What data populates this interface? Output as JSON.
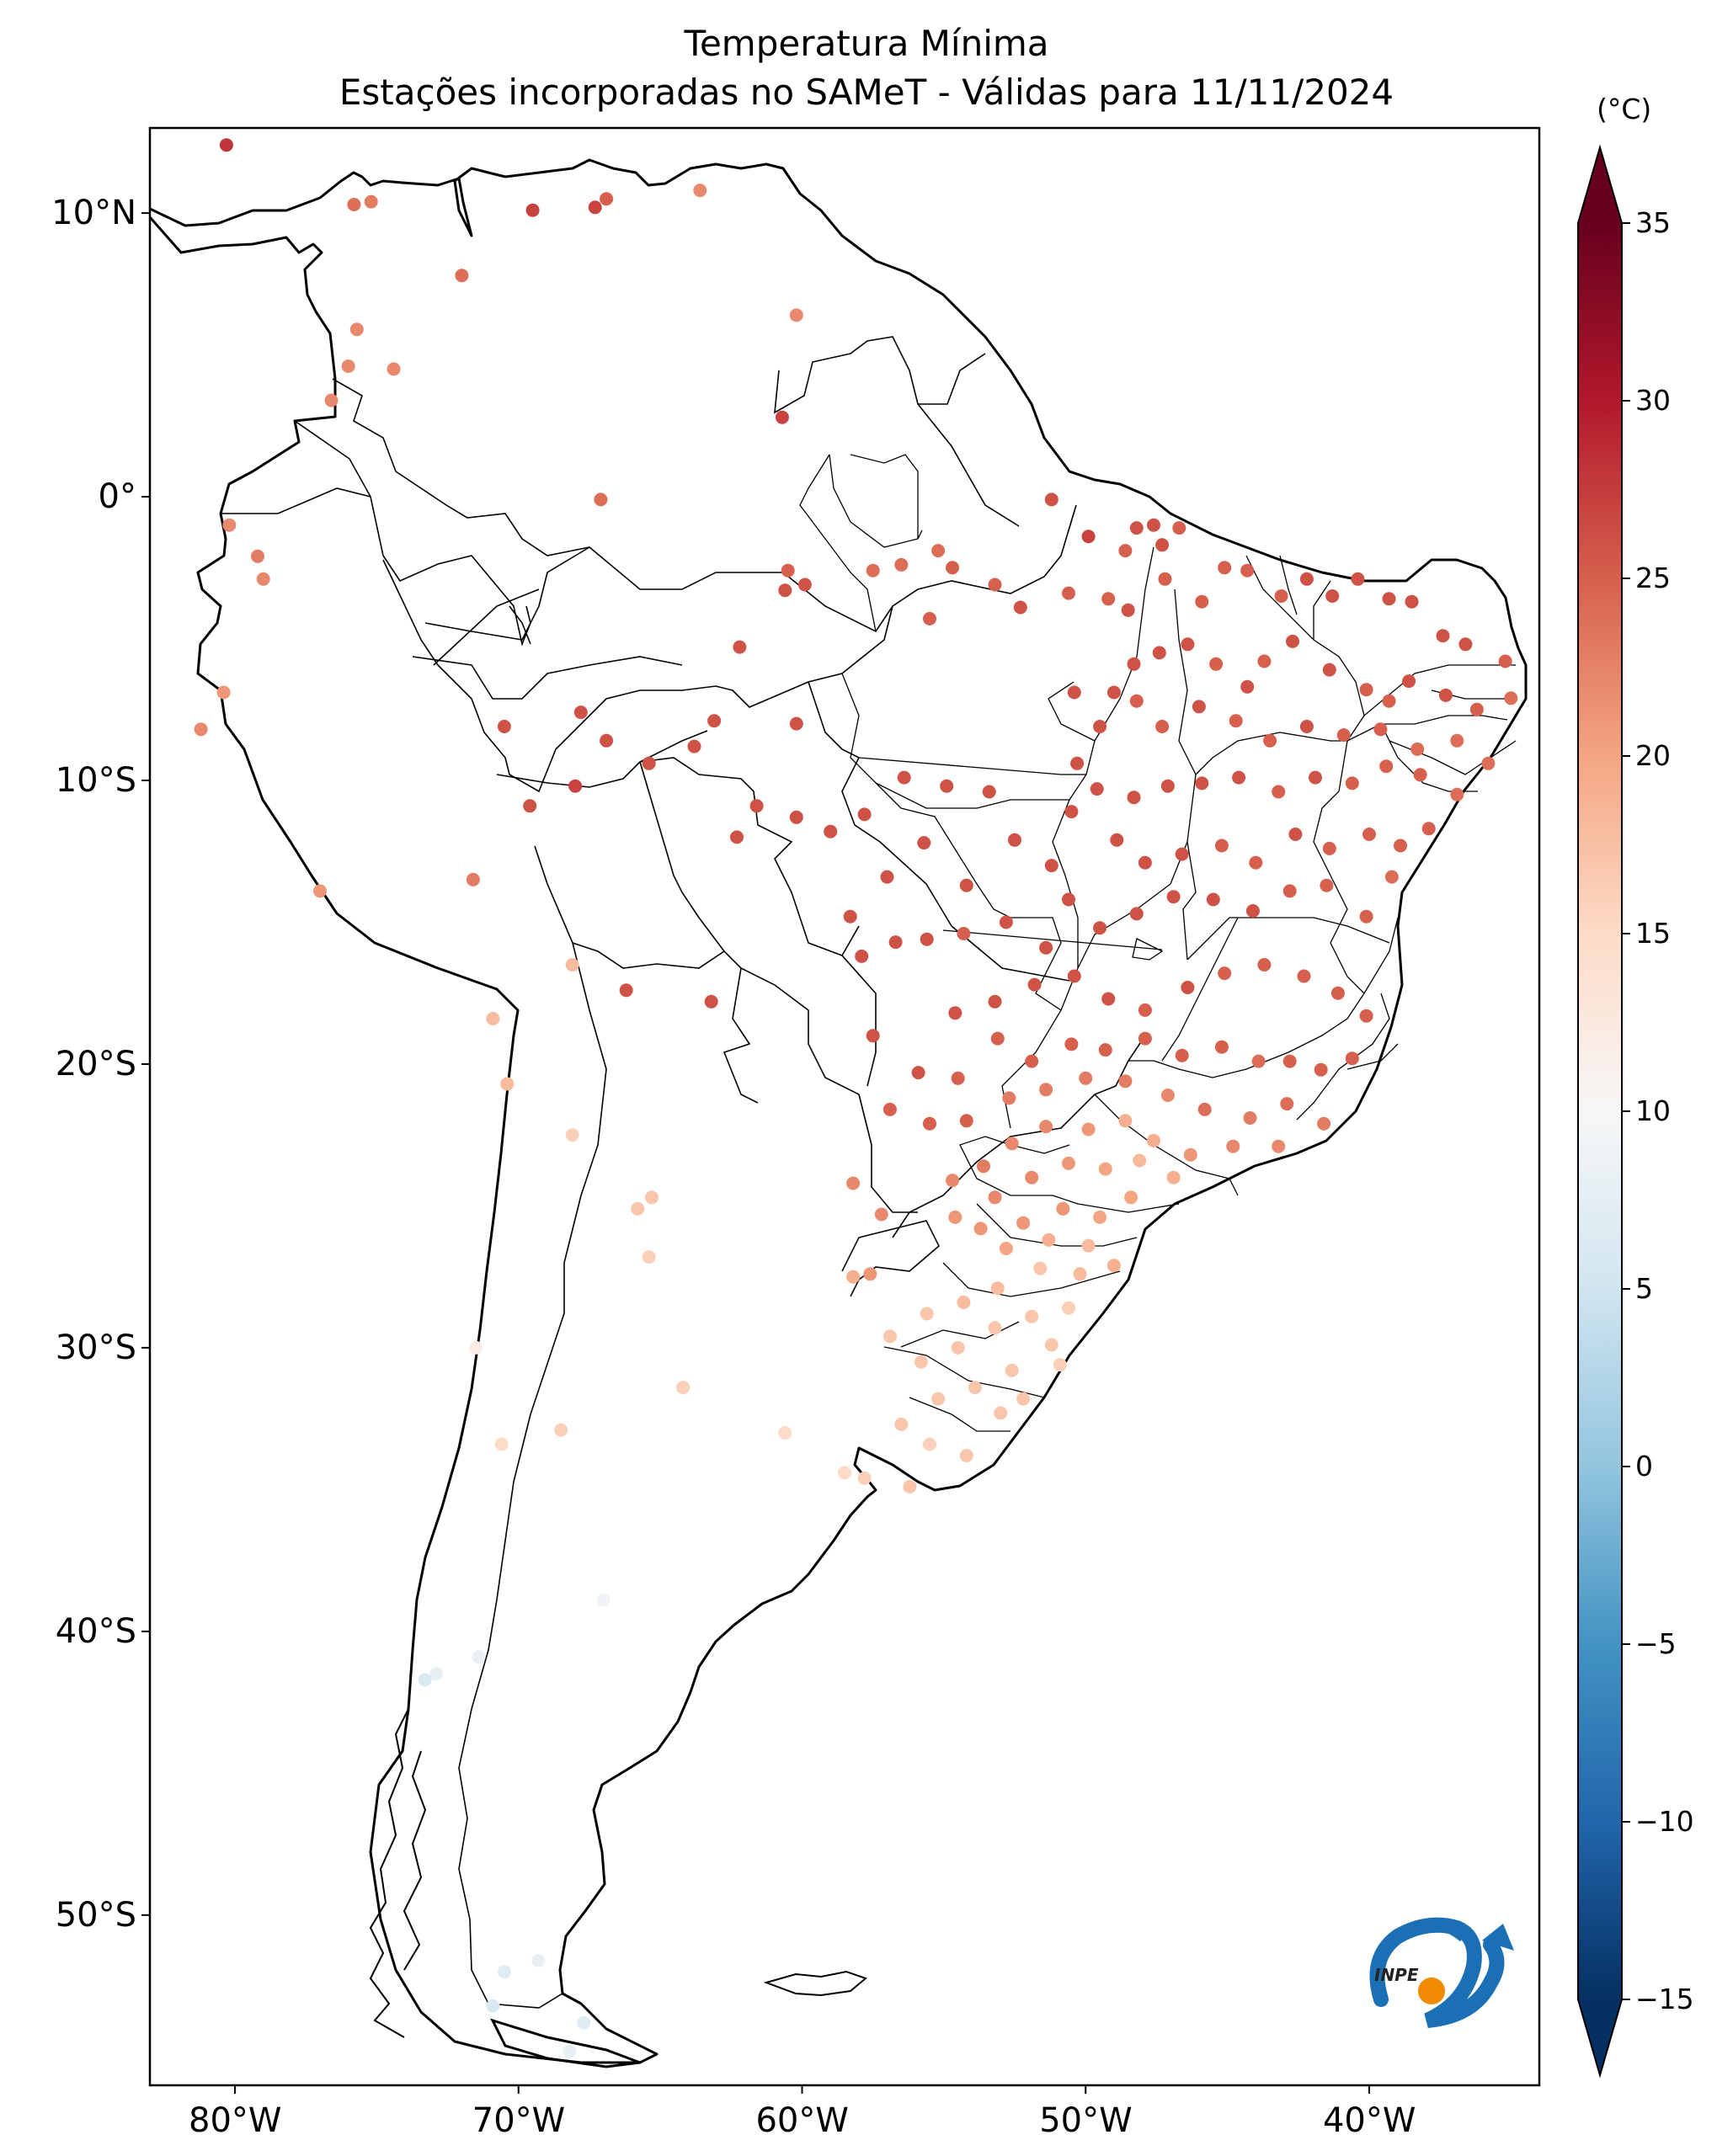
{
  "title": {
    "line1": "Temperatura Mínima",
    "line2": "Estações incorporadas no SAMeT - Válidas para 11/11/2024"
  },
  "map": {
    "lon_range": [
      -83,
      -34
    ],
    "lat_range": [
      -56,
      13
    ],
    "lat_ticks": [
      {
        "value": 10,
        "label": "10°N"
      },
      {
        "value": 0,
        "label": "0°"
      },
      {
        "value": -10,
        "label": "10°S"
      },
      {
        "value": -20,
        "label": "20°S"
      },
      {
        "value": -30,
        "label": "30°S"
      },
      {
        "value": -40,
        "label": "40°S"
      },
      {
        "value": -50,
        "label": "50°S"
      }
    ],
    "lon_ticks": [
      {
        "value": -80,
        "label": "80°W"
      },
      {
        "value": -70,
        "label": "70°W"
      },
      {
        "value": -60,
        "label": "60°W"
      },
      {
        "value": -50,
        "label": "50°W"
      },
      {
        "value": -40,
        "label": "40°W"
      }
    ]
  },
  "colorbar": {
    "unit": "(°C)",
    "min": -15,
    "max": 35,
    "extend": "both",
    "colormap": "RdBu_r",
    "ticks": [
      {
        "value": 35,
        "label": "35"
      },
      {
        "value": 30,
        "label": "30"
      },
      {
        "value": 25,
        "label": "25"
      },
      {
        "value": 20,
        "label": "20"
      },
      {
        "value": 15,
        "label": "15"
      },
      {
        "value": 10,
        "label": "10"
      },
      {
        "value": 5,
        "label": "5"
      },
      {
        "value": 0,
        "label": "0"
      },
      {
        "value": -5,
        "label": "−5"
      },
      {
        "value": -10,
        "label": "−10"
      },
      {
        "value": -15,
        "label": "−15"
      }
    ],
    "stops": [
      "#053061",
      "#2166ac",
      "#4393c3",
      "#92c5de",
      "#d1e5f0",
      "#f7f7f7",
      "#fddbc7",
      "#f4a582",
      "#d6604d",
      "#b2182b",
      "#67001f"
    ]
  },
  "logo": {
    "text": "INPE",
    "blue": "#1a6fb5",
    "orange": "#f08a00"
  },
  "chart_data": {
    "type": "scatter",
    "description_units": "lon (deg E), lat (deg N), minimum temperature (°C)",
    "stations": [
      [
        -80.3,
        12.4,
        28
      ],
      [
        -75.8,
        10.3,
        24
      ],
      [
        -75.2,
        10.4,
        23
      ],
      [
        -69.5,
        10.1,
        27
      ],
      [
        -67.3,
        10.2,
        27
      ],
      [
        -66.9,
        10.5,
        25
      ],
      [
        -63.6,
        10.8,
        22
      ],
      [
        -72.0,
        7.8,
        24
      ],
      [
        -60.2,
        6.4,
        22
      ],
      [
        -75.7,
        5.9,
        22
      ],
      [
        -76.0,
        4.6,
        22
      ],
      [
        -74.4,
        4.5,
        22
      ],
      [
        -76.6,
        3.4,
        22
      ],
      [
        -60.7,
        2.8,
        27
      ],
      [
        -67.1,
        -0.1,
        24
      ],
      [
        -80.2,
        -1.0,
        22
      ],
      [
        -79.2,
        -2.1,
        23
      ],
      [
        -79.0,
        -2.9,
        22
      ],
      [
        -59.9,
        -3.1,
        26
      ],
      [
        -60.6,
        -3.3,
        26
      ],
      [
        -60.5,
        -2.6,
        25
      ],
      [
        -57.5,
        -2.6,
        24
      ],
      [
        -56.5,
        -2.4,
        24
      ],
      [
        -55.2,
        -1.9,
        24
      ],
      [
        -54.7,
        -2.5,
        25
      ],
      [
        -53.2,
        -3.1,
        25
      ],
      [
        -55.5,
        -4.3,
        25
      ],
      [
        -52.3,
        -3.9,
        26
      ],
      [
        -50.6,
        -3.4,
        25
      ],
      [
        -49.2,
        -3.6,
        25
      ],
      [
        -48.5,
        -4.0,
        26
      ],
      [
        -45.9,
        -3.7,
        25
      ],
      [
        -51.2,
        -0.1,
        26
      ],
      [
        -49.9,
        -1.4,
        27
      ],
      [
        -48.2,
        -1.1,
        26
      ],
      [
        -47.6,
        -1.0,
        26
      ],
      [
        -46.7,
        -1.1,
        25
      ],
      [
        -47.3,
        -1.7,
        26
      ],
      [
        -48.6,
        -1.9,
        25
      ],
      [
        -47.2,
        -2.9,
        25
      ],
      [
        -45.1,
        -2.5,
        25
      ],
      [
        -44.3,
        -2.6,
        25
      ],
      [
        -43.1,
        -3.5,
        25
      ],
      [
        -42.2,
        -2.9,
        26
      ],
      [
        -41.3,
        -3.5,
        26
      ],
      [
        -40.4,
        -2.9,
        26
      ],
      [
        -39.3,
        -3.6,
        26
      ],
      [
        -38.5,
        -3.7,
        26
      ],
      [
        -37.4,
        -4.9,
        26
      ],
      [
        -36.6,
        -5.2,
        26
      ],
      [
        -35.2,
        -5.8,
        25
      ],
      [
        -35.0,
        -7.1,
        24
      ],
      [
        -36.2,
        -7.5,
        25
      ],
      [
        -37.3,
        -7.0,
        26
      ],
      [
        -38.6,
        -6.5,
        26
      ],
      [
        -39.3,
        -7.2,
        25
      ],
      [
        -40.1,
        -6.8,
        25
      ],
      [
        -41.4,
        -6.1,
        26
      ],
      [
        -42.7,
        -5.1,
        26
      ],
      [
        -43.7,
        -5.8,
        25
      ],
      [
        -44.3,
        -6.7,
        26
      ],
      [
        -45.4,
        -5.9,
        25
      ],
      [
        -46.4,
        -5.2,
        26
      ],
      [
        -47.4,
        -5.5,
        26
      ],
      [
        -48.3,
        -5.9,
        26
      ],
      [
        -49.0,
        -6.9,
        26
      ],
      [
        -48.2,
        -7.2,
        25
      ],
      [
        -47.3,
        -8.1,
        25
      ],
      [
        -46.0,
        -7.4,
        26
      ],
      [
        -44.7,
        -7.9,
        25
      ],
      [
        -43.5,
        -8.6,
        25
      ],
      [
        -42.2,
        -8.1,
        26
      ],
      [
        -40.9,
        -8.4,
        25
      ],
      [
        -39.6,
        -8.2,
        25
      ],
      [
        -38.3,
        -8.9,
        24
      ],
      [
        -36.9,
        -8.6,
        24
      ],
      [
        -35.8,
        -9.4,
        24
      ],
      [
        -36.9,
        -10.5,
        24
      ],
      [
        -38.2,
        -9.8,
        25
      ],
      [
        -39.4,
        -9.5,
        25
      ],
      [
        -40.6,
        -10.1,
        25
      ],
      [
        -41.9,
        -9.9,
        26
      ],
      [
        -43.2,
        -10.4,
        25
      ],
      [
        -44.6,
        -9.9,
        26
      ],
      [
        -45.9,
        -10.1,
        26
      ],
      [
        -47.1,
        -10.2,
        26
      ],
      [
        -48.3,
        -10.6,
        26
      ],
      [
        -49.6,
        -10.3,
        26
      ],
      [
        -50.3,
        -9.4,
        26
      ],
      [
        -49.5,
        -8.1,
        26
      ],
      [
        -50.4,
        -6.9,
        26
      ],
      [
        -48.9,
        -12.1,
        26
      ],
      [
        -47.9,
        -12.9,
        26
      ],
      [
        -46.6,
        -12.6,
        26
      ],
      [
        -45.2,
        -12.3,
        25
      ],
      [
        -44.0,
        -12.9,
        25
      ],
      [
        -42.6,
        -11.9,
        26
      ],
      [
        -41.4,
        -12.4,
        25
      ],
      [
        -40.0,
        -11.9,
        25
      ],
      [
        -38.9,
        -12.3,
        25
      ],
      [
        -37.9,
        -11.7,
        25
      ],
      [
        -39.2,
        -13.4,
        24
      ],
      [
        -40.1,
        -14.8,
        25
      ],
      [
        -41.5,
        -13.7,
        25
      ],
      [
        -42.8,
        -13.9,
        25
      ],
      [
        -44.1,
        -14.6,
        26
      ],
      [
        -45.5,
        -14.2,
        26
      ],
      [
        -46.9,
        -14.1,
        26
      ],
      [
        -48.2,
        -14.7,
        26
      ],
      [
        -49.5,
        -15.2,
        26
      ],
      [
        -50.6,
        -14.2,
        26
      ],
      [
        -51.4,
        -15.9,
        26
      ],
      [
        -52.8,
        -15.0,
        26
      ],
      [
        -54.3,
        -15.4,
        25
      ],
      [
        -55.6,
        -15.6,
        26
      ],
      [
        -56.7,
        -15.7,
        26
      ],
      [
        -57.9,
        -16.2,
        26
      ],
      [
        -58.3,
        -14.8,
        26
      ],
      [
        -57.0,
        -13.4,
        26
      ],
      [
        -55.7,
        -12.2,
        26
      ],
      [
        -54.2,
        -13.7,
        26
      ],
      [
        -52.5,
        -12.1,
        26
      ],
      [
        -51.2,
        -13.0,
        26
      ],
      [
        -50.5,
        -11.1,
        26
      ],
      [
        -53.4,
        -10.4,
        26
      ],
      [
        -54.9,
        -10.2,
        26
      ],
      [
        -56.4,
        -9.9,
        26
      ],
      [
        -57.8,
        -11.2,
        26
      ],
      [
        -59.0,
        -11.8,
        26
      ],
      [
        -60.2,
        -11.3,
        26
      ],
      [
        -61.6,
        -10.9,
        26
      ],
      [
        -62.3,
        -12.0,
        26
      ],
      [
        -63.8,
        -8.8,
        26
      ],
      [
        -65.4,
        -9.4,
        26
      ],
      [
        -66.9,
        -8.6,
        26
      ],
      [
        -68.0,
        -10.2,
        27
      ],
      [
        -69.6,
        -10.9,
        26
      ],
      [
        -70.5,
        -8.1,
        26
      ],
      [
        -67.8,
        -7.6,
        26
      ],
      [
        -63.1,
        -7.9,
        26
      ],
      [
        -62.2,
        -5.3,
        26
      ],
      [
        -60.2,
        -8.0,
        26
      ],
      [
        -54.6,
        -18.2,
        26
      ],
      [
        -53.2,
        -17.8,
        26
      ],
      [
        -51.8,
        -17.2,
        26
      ],
      [
        -50.4,
        -16.9,
        26
      ],
      [
        -49.2,
        -17.7,
        26
      ],
      [
        -47.9,
        -18.1,
        25
      ],
      [
        -46.4,
        -17.3,
        26
      ],
      [
        -45.1,
        -16.8,
        25
      ],
      [
        -43.7,
        -16.5,
        25
      ],
      [
        -42.3,
        -16.9,
        25
      ],
      [
        -41.1,
        -17.5,
        25
      ],
      [
        -40.1,
        -18.3,
        25
      ],
      [
        -40.6,
        -19.8,
        25
      ],
      [
        -41.7,
        -20.2,
        25
      ],
      [
        -42.8,
        -19.9,
        25
      ],
      [
        -43.9,
        -19.9,
        24
      ],
      [
        -45.2,
        -19.4,
        25
      ],
      [
        -46.6,
        -19.7,
        25
      ],
      [
        -47.9,
        -19.1,
        25
      ],
      [
        -49.3,
        -19.5,
        25
      ],
      [
        -50.5,
        -19.3,
        25
      ],
      [
        -51.9,
        -19.9,
        25
      ],
      [
        -53.1,
        -19.1,
        25
      ],
      [
        -54.5,
        -20.5,
        25
      ],
      [
        -55.9,
        -20.3,
        26
      ],
      [
        -57.5,
        -19.0,
        26
      ],
      [
        -56.9,
        -21.6,
        25
      ],
      [
        -55.5,
        -22.1,
        25
      ],
      [
        -54.2,
        -22.0,
        25
      ],
      [
        -52.7,
        -21.2,
        23
      ],
      [
        -51.4,
        -20.9,
        23
      ],
      [
        -50.0,
        -20.5,
        23
      ],
      [
        -48.6,
        -20.6,
        23
      ],
      [
        -47.1,
        -21.1,
        22
      ],
      [
        -45.8,
        -21.6,
        24
      ],
      [
        -44.2,
        -21.9,
        23
      ],
      [
        -42.9,
        -21.4,
        24
      ],
      [
        -41.6,
        -22.1,
        23
      ],
      [
        -43.2,
        -22.9,
        22
      ],
      [
        -44.8,
        -22.9,
        22
      ],
      [
        -46.3,
        -23.2,
        21
      ],
      [
        -47.6,
        -22.7,
        19
      ],
      [
        -48.6,
        -22.0,
        19
      ],
      [
        -49.9,
        -22.3,
        21
      ],
      [
        -51.4,
        -22.2,
        22
      ],
      [
        -52.6,
        -22.8,
        22
      ],
      [
        -53.6,
        -23.6,
        23
      ],
      [
        -54.7,
        -24.1,
        22
      ],
      [
        -53.2,
        -24.7,
        22
      ],
      [
        -51.9,
        -24.0,
        22
      ],
      [
        -50.6,
        -23.5,
        21
      ],
      [
        -49.3,
        -23.7,
        20
      ],
      [
        -48.1,
        -23.4,
        18
      ],
      [
        -46.9,
        -24.0,
        19
      ],
      [
        -48.4,
        -24.7,
        20
      ],
      [
        -49.5,
        -25.4,
        20
      ],
      [
        -50.8,
        -25.1,
        21
      ],
      [
        -52.2,
        -25.6,
        21
      ],
      [
        -53.7,
        -25.8,
        21
      ],
      [
        -54.6,
        -25.4,
        21
      ],
      [
        -52.8,
        -26.5,
        20
      ],
      [
        -51.3,
        -26.2,
        19
      ],
      [
        -49.9,
        -26.4,
        18
      ],
      [
        -49.0,
        -27.1,
        19
      ],
      [
        -50.2,
        -27.4,
        18
      ],
      [
        -51.6,
        -27.2,
        17
      ],
      [
        -53.1,
        -27.9,
        18
      ],
      [
        -54.3,
        -28.4,
        18
      ],
      [
        -55.6,
        -28.8,
        17
      ],
      [
        -56.9,
        -29.6,
        17
      ],
      [
        -55.8,
        -30.5,
        17
      ],
      [
        -54.5,
        -30.0,
        17
      ],
      [
        -53.2,
        -29.3,
        17
      ],
      [
        -51.9,
        -28.9,
        17
      ],
      [
        -50.6,
        -28.6,
        16
      ],
      [
        -51.2,
        -29.9,
        17
      ],
      [
        -52.6,
        -30.8,
        17
      ],
      [
        -53.9,
        -31.4,
        17
      ],
      [
        -55.2,
        -31.8,
        17
      ],
      [
        -56.5,
        -32.7,
        17
      ],
      [
        -55.5,
        -33.4,
        16
      ],
      [
        -54.2,
        -33.8,
        17
      ],
      [
        -53.0,
        -32.3,
        17
      ],
      [
        -52.2,
        -31.8,
        17
      ],
      [
        -50.9,
        -30.6,
        16
      ],
      [
        -56.2,
        -34.9,
        17
      ],
      [
        -57.8,
        -34.6,
        16
      ],
      [
        -58.5,
        -34.4,
        15
      ],
      [
        -60.6,
        -33.0,
        15
      ],
      [
        -64.2,
        -31.4,
        16
      ],
      [
        -68.5,
        -32.9,
        16
      ],
      [
        -70.6,
        -33.4,
        15
      ],
      [
        -71.5,
        -30.0,
        12
      ],
      [
        -70.9,
        -18.4,
        18
      ],
      [
        -70.4,
        -20.7,
        18
      ],
      [
        -68.1,
        -22.5,
        16
      ],
      [
        -65.3,
        -24.7,
        17
      ],
      [
        -65.4,
        -26.8,
        16
      ],
      [
        -65.8,
        -25.1,
        17
      ],
      [
        -58.2,
        -27.5,
        19
      ],
      [
        -57.6,
        -27.4,
        21
      ],
      [
        -57.2,
        -25.3,
        22
      ],
      [
        -58.2,
        -24.2,
        22
      ],
      [
        -71.6,
        -13.5,
        23
      ],
      [
        -68.1,
        -16.5,
        18
      ],
      [
        -66.2,
        -17.4,
        26
      ],
      [
        -63.2,
        -17.8,
        26
      ],
      [
        -80.4,
        -6.9,
        21
      ],
      [
        -81.2,
        -8.2,
        22
      ],
      [
        -77.0,
        -13.9,
        21
      ],
      [
        -71.4,
        -40.9,
        8
      ],
      [
        -67.0,
        -38.9,
        9
      ],
      [
        -72.9,
        -41.5,
        8
      ],
      [
        -73.3,
        -41.7,
        6
      ],
      [
        -70.9,
        -53.2,
        6
      ],
      [
        -68.2,
        -54.8,
        8
      ],
      [
        -67.7,
        -53.8,
        7
      ],
      [
        -70.5,
        -52.0,
        7
      ],
      [
        -69.3,
        -51.6,
        8
      ]
    ]
  }
}
